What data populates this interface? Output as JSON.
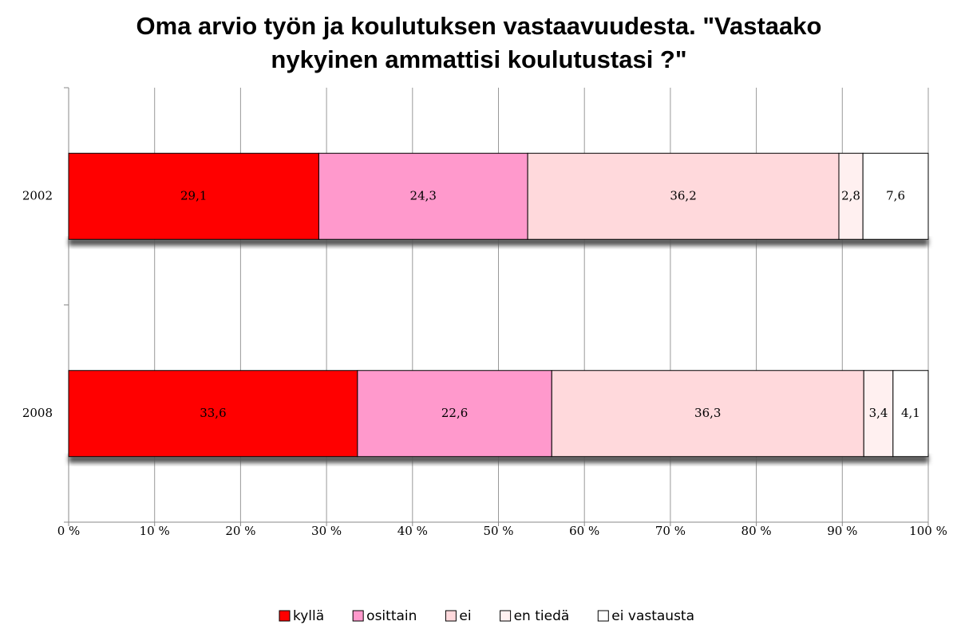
{
  "chart_data": {
    "type": "stacked-barh",
    "title": "Oma arvio työn ja koulutuksen vastaavuudesta. \"Vastaako nykyinen ammattisi koulutustasi ?\"",
    "categories": [
      "2002",
      "2008"
    ],
    "series": [
      {
        "name": "kyllä",
        "color": "#ff0000",
        "values": [
          29.1,
          33.6
        ],
        "value_labels": [
          "29,1",
          "33,6"
        ]
      },
      {
        "name": "osittain",
        "color": "#ff99cc",
        "values": [
          24.3,
          22.6
        ],
        "value_labels": [
          "24,3",
          "22,6"
        ]
      },
      {
        "name": "ei",
        "color": "#ffd9dc",
        "values": [
          36.2,
          36.3
        ],
        "value_labels": [
          "36,2",
          "36,3"
        ]
      },
      {
        "name": "en tiedä",
        "color": "#fff0f0",
        "values": [
          2.8,
          3.4
        ],
        "value_labels": [
          "2,8",
          "3,4"
        ]
      },
      {
        "name": "ei vastausta",
        "color": "#ffffff",
        "values": [
          7.6,
          4.1
        ],
        "value_labels": [
          "7,6",
          "4,1"
        ]
      }
    ],
    "xlim": [
      0,
      100
    ],
    "xticks": [
      {
        "value": 0,
        "label": "0 %"
      },
      {
        "value": 10,
        "label": "10 %"
      },
      {
        "value": 20,
        "label": "20 %"
      },
      {
        "value": 30,
        "label": "30 %"
      },
      {
        "value": 40,
        "label": "40 %"
      },
      {
        "value": 50,
        "label": "50 %"
      },
      {
        "value": 60,
        "label": "60 %"
      },
      {
        "value": 70,
        "label": "70 %"
      },
      {
        "value": 80,
        "label": "80 %"
      },
      {
        "value": 90,
        "label": "90 %"
      },
      {
        "value": 100,
        "label": "100 %"
      }
    ],
    "grid": true,
    "legend": "bottom"
  }
}
